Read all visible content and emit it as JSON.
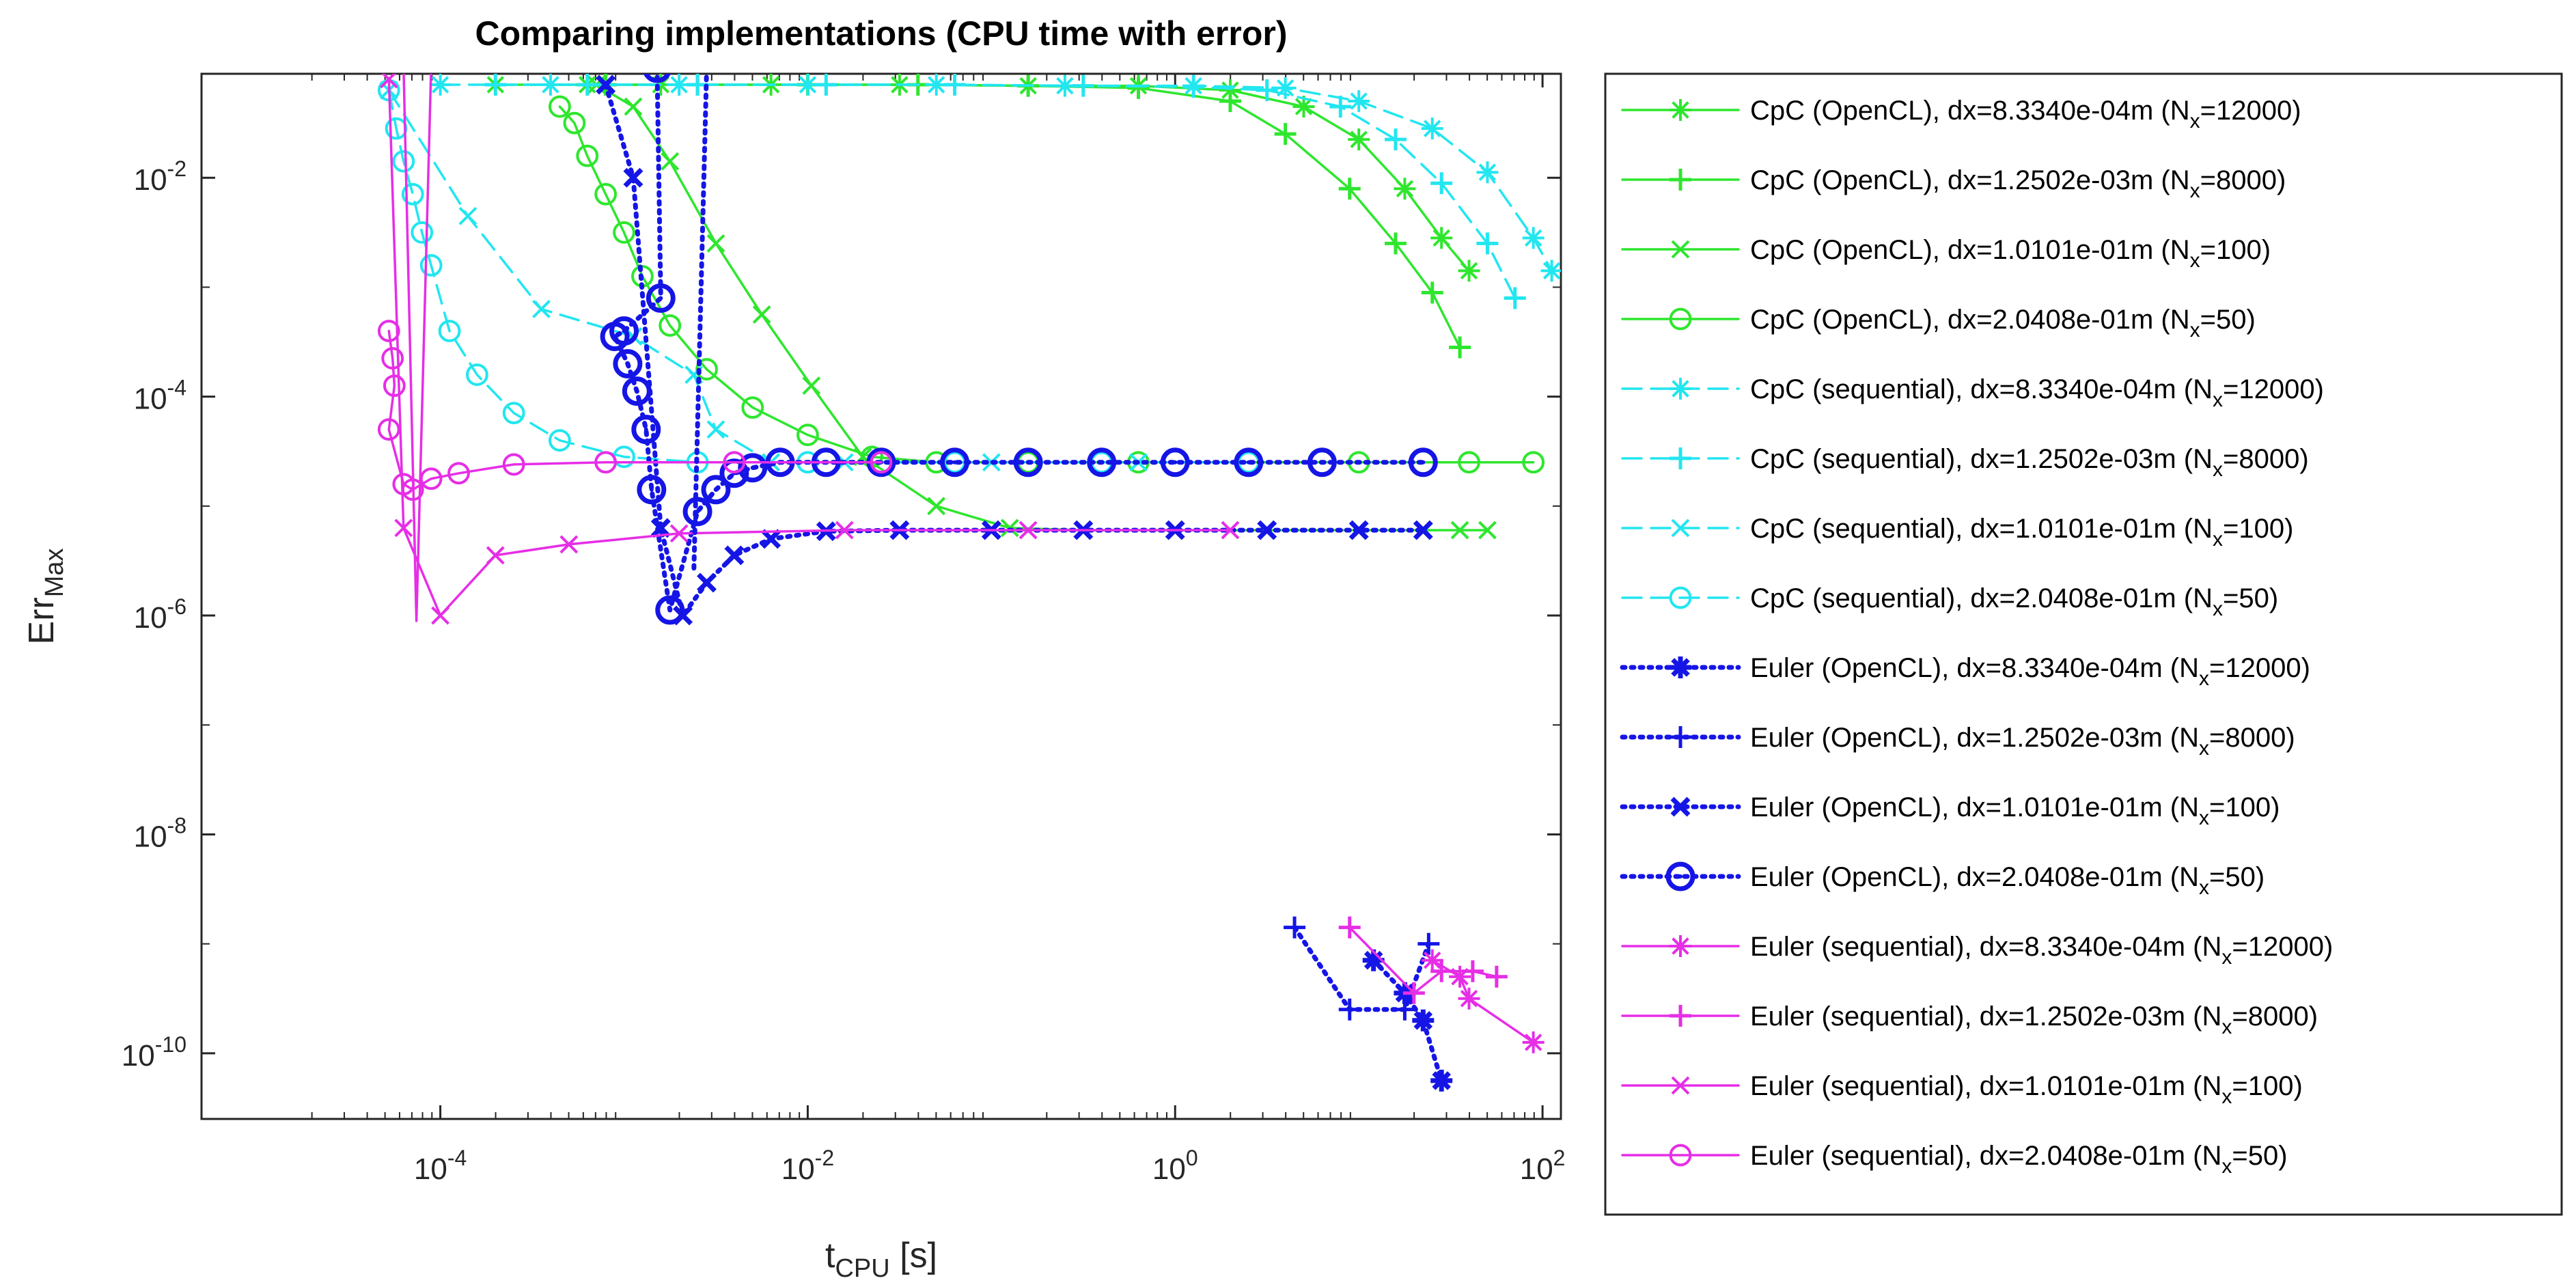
{
  "chart_data": {
    "type": "line",
    "title": "Comparing implementations (CPU time with error)",
    "xlabel": {
      "base": "t",
      "sub": "CPU",
      "rest": " [s]"
    },
    "ylabel": {
      "base": "Err",
      "sub": "Max"
    },
    "xscale": "log",
    "yscale": "log",
    "xlim_log10": [
      -5.3,
      2.1
    ],
    "ylim_log10": [
      -10.6,
      -1.05
    ],
    "x_ticks": [
      {
        "exp": -4,
        "base": "10",
        "sup": "-4"
      },
      {
        "exp": -2,
        "base": "10",
        "sup": "-2"
      },
      {
        "exp": 0,
        "base": "10",
        "sup": "0"
      },
      {
        "exp": 2,
        "base": "10",
        "sup": "2"
      }
    ],
    "y_ticks": [
      {
        "exp": -10,
        "base": "10",
        "sup": "-10"
      },
      {
        "exp": -8,
        "base": "10",
        "sup": "-8"
      },
      {
        "exp": -6,
        "base": "10",
        "sup": "-6"
      },
      {
        "exp": -4,
        "base": "10",
        "sup": "-4"
      },
      {
        "exp": -2,
        "base": "10",
        "sup": "-2"
      }
    ],
    "grid": false,
    "legend_position": "outside-right",
    "series": [
      {
        "label": "CpC (OpenCL), dx=8.3340e-04m (N",
        "sub": "x",
        "tail": "=12000)",
        "color": "#2ee62e",
        "dash": "solid",
        "marker": "asterisk",
        "points": [
          [
            -3.7,
            -1.15
          ],
          [
            -3.2,
            -1.15
          ],
          [
            -2.8,
            -1.15
          ],
          [
            -2.2,
            -1.15
          ],
          [
            -1.5,
            -1.15
          ],
          [
            -0.8,
            -1.16
          ],
          [
            -0.2,
            -1.16
          ],
          [
            0.3,
            -1.2
          ],
          [
            0.7,
            -1.35
          ],
          [
            1.0,
            -1.65
          ],
          [
            1.25,
            -2.1
          ],
          [
            1.45,
            -2.55
          ],
          [
            1.6,
            -2.85
          ]
        ]
      },
      {
        "label": "CpC (OpenCL), dx=1.2502e-03m (N",
        "sub": "x",
        "tail": "=8000)",
        "color": "#2ee62e",
        "dash": "solid",
        "marker": "plus",
        "points": [
          [
            -3.1,
            -1.15
          ],
          [
            -2.6,
            -1.15
          ],
          [
            -2.0,
            -1.15
          ],
          [
            -1.4,
            -1.15
          ],
          [
            -0.8,
            -1.16
          ],
          [
            -0.2,
            -1.18
          ],
          [
            0.3,
            -1.3
          ],
          [
            0.6,
            -1.6
          ],
          [
            0.95,
            -2.1
          ],
          [
            1.2,
            -2.6
          ],
          [
            1.4,
            -3.05
          ],
          [
            1.55,
            -3.55
          ]
        ]
      },
      {
        "label": "CpC (OpenCL), dx=1.0101e-01m (N",
        "sub": "x",
        "tail": "=100)",
        "color": "#2ee62e",
        "dash": "solid",
        "marker": "x",
        "points": [
          [
            -3.15,
            -1.15
          ],
          [
            -2.95,
            -1.35
          ],
          [
            -2.75,
            -1.85
          ],
          [
            -2.5,
            -2.6
          ],
          [
            -2.25,
            -3.25
          ],
          [
            -1.98,
            -3.9
          ],
          [
            -1.7,
            -4.55
          ],
          [
            -1.3,
            -5.0
          ],
          [
            -0.9,
            -5.2
          ],
          [
            -0.5,
            -5.22
          ],
          [
            0.0,
            -5.22
          ],
          [
            0.5,
            -5.22
          ],
          [
            1.0,
            -5.22
          ],
          [
            1.55,
            -5.22
          ],
          [
            1.7,
            -5.22
          ]
        ]
      },
      {
        "label": "CpC (OpenCL), dx=2.0408e-01m (N",
        "sub": "x",
        "tail": "=50)",
        "color": "#2ee62e",
        "dash": "solid",
        "marker": "circle",
        "points": [
          [
            -3.35,
            -1.35
          ],
          [
            -3.27,
            -1.5
          ],
          [
            -3.2,
            -1.8
          ],
          [
            -3.1,
            -2.15
          ],
          [
            -3.0,
            -2.5
          ],
          [
            -2.9,
            -2.9
          ],
          [
            -2.75,
            -3.35
          ],
          [
            -2.55,
            -3.75
          ],
          [
            -2.3,
            -4.1
          ],
          [
            -2.0,
            -4.35
          ],
          [
            -1.65,
            -4.55
          ],
          [
            -1.3,
            -4.6
          ],
          [
            -0.8,
            -4.6
          ],
          [
            -0.2,
            -4.6
          ],
          [
            0.4,
            -4.6
          ],
          [
            1.0,
            -4.6
          ],
          [
            1.6,
            -4.6
          ],
          [
            1.95,
            -4.6
          ]
        ]
      },
      {
        "label": "CpC (sequential), dx=8.3340e-04m (N",
        "sub": "x",
        "tail": "=12000)",
        "color": "#22e6f0",
        "dash": "dashed",
        "marker": "asterisk",
        "points": [
          [
            -4.0,
            -1.15
          ],
          [
            -3.4,
            -1.15
          ],
          [
            -2.7,
            -1.15
          ],
          [
            -2.0,
            -1.15
          ],
          [
            -1.3,
            -1.15
          ],
          [
            -0.6,
            -1.16
          ],
          [
            0.1,
            -1.16
          ],
          [
            0.6,
            -1.18
          ],
          [
            1.0,
            -1.3
          ],
          [
            1.4,
            -1.55
          ],
          [
            1.7,
            -1.95
          ],
          [
            1.95,
            -2.55
          ],
          [
            2.05,
            -2.85
          ]
        ]
      },
      {
        "label": "CpC (sequential), dx=1.2502e-03m (N",
        "sub": "x",
        "tail": "=8000)",
        "color": "#22e6f0",
        "dash": "dashed",
        "marker": "plus",
        "points": [
          [
            -3.7,
            -1.15
          ],
          [
            -3.2,
            -1.15
          ],
          [
            -2.6,
            -1.15
          ],
          [
            -1.9,
            -1.15
          ],
          [
            -1.2,
            -1.15
          ],
          [
            -0.5,
            -1.16
          ],
          [
            0.1,
            -1.17
          ],
          [
            0.5,
            -1.2
          ],
          [
            0.9,
            -1.35
          ],
          [
            1.2,
            -1.65
          ],
          [
            1.45,
            -2.05
          ],
          [
            1.7,
            -2.6
          ],
          [
            1.85,
            -3.1
          ]
        ]
      },
      {
        "label": "CpC (sequential), dx=1.0101e-01m (N",
        "sub": "x",
        "tail": "=100)",
        "color": "#22e6f0",
        "dash": "dashed",
        "marker": "x",
        "points": [
          [
            -4.28,
            -1.2
          ],
          [
            -3.85,
            -2.35
          ],
          [
            -3.45,
            -3.2
          ],
          [
            -2.95,
            -3.45
          ],
          [
            -2.62,
            -3.8
          ],
          [
            -2.5,
            -4.3
          ],
          [
            -2.2,
            -4.6
          ],
          [
            -1.8,
            -4.6
          ],
          [
            -1.0,
            -4.6
          ],
          [
            -0.2,
            -4.6
          ]
        ]
      },
      {
        "label": "CpC (sequential), dx=2.0408e-01m (N",
        "sub": "x",
        "tail": "=50)",
        "color": "#22e6f0",
        "dash": "dashed",
        "marker": "circle",
        "points": [
          [
            -4.28,
            -1.2
          ],
          [
            -4.24,
            -1.55
          ],
          [
            -4.2,
            -1.85
          ],
          [
            -4.15,
            -2.15
          ],
          [
            -4.1,
            -2.5
          ],
          [
            -4.05,
            -2.8
          ],
          [
            -3.95,
            -3.4
          ],
          [
            -3.8,
            -3.8
          ],
          [
            -3.6,
            -4.15
          ],
          [
            -3.35,
            -4.4
          ],
          [
            -3.0,
            -4.55
          ],
          [
            -2.6,
            -4.6
          ],
          [
            -2.0,
            -4.6
          ],
          [
            -1.2,
            -4.6
          ],
          [
            -0.4,
            -4.6
          ],
          [
            0.4,
            -4.6
          ]
        ]
      },
      {
        "label": "Euler (OpenCL), dx=8.3340e-04m (N",
        "sub": "x",
        "tail": "=12000)",
        "color": "#1515e6",
        "dash": "dotted",
        "marker": "filledstar",
        "points": [
          [
            1.08,
            -9.15
          ],
          [
            1.25,
            -9.45
          ],
          [
            1.35,
            -9.7
          ],
          [
            1.45,
            -10.25
          ]
        ]
      },
      {
        "label": "Euler (OpenCL), dx=1.2502e-03m (N",
        "sub": "x",
        "tail": "=8000)",
        "color": "#1515e6",
        "dash": "dotted",
        "marker": "plus",
        "points": [
          [
            0.65,
            -8.85
          ],
          [
            0.95,
            -9.6
          ],
          [
            1.25,
            -9.6
          ],
          [
            1.38,
            -9.0
          ]
        ]
      },
      {
        "label": "Euler (OpenCL), dx=1.0101e-01m (N",
        "sub": "x",
        "tail": "=100)",
        "color": "#1515e6",
        "dash": "dotted",
        "marker": "x",
        "points": [
          [
            -3.1,
            -1.15
          ],
          [
            -2.95,
            -2.0
          ],
          [
            -2.8,
            -5.2
          ],
          [
            -2.68,
            -6.0
          ],
          [
            -2.55,
            -5.7
          ],
          [
            -2.4,
            -5.45
          ],
          [
            -2.2,
            -5.3
          ],
          [
            -1.9,
            -5.23
          ],
          [
            -1.5,
            -5.22
          ],
          [
            -1.0,
            -5.22
          ],
          [
            -0.5,
            -5.22
          ],
          [
            0.0,
            -5.22
          ],
          [
            0.5,
            -5.22
          ],
          [
            1.0,
            -5.22
          ],
          [
            1.35,
            -5.22
          ]
        ]
      },
      {
        "label": "Euler (OpenCL), dx=2.0408e-01m (N",
        "sub": "x",
        "tail": "=50)",
        "color": "#1515e6",
        "dash": "dotted",
        "marker": "bigcircle",
        "points": [
          [
            -2.82,
            -1.0
          ],
          [
            -2.8,
            -3.1
          ],
          [
            -3.0,
            -3.4
          ],
          [
            -3.05,
            -3.45
          ],
          [
            -2.98,
            -3.7
          ],
          [
            -2.93,
            -3.95
          ],
          [
            -2.88,
            -4.3
          ],
          [
            -2.85,
            -4.85
          ],
          [
            -2.75,
            -5.95
          ],
          [
            -2.6,
            -5.05
          ],
          [
            -2.5,
            -4.85
          ],
          [
            -2.4,
            -4.7
          ],
          [
            -2.3,
            -4.65
          ],
          [
            -2.15,
            -4.6
          ],
          [
            -1.9,
            -4.6
          ],
          [
            -1.6,
            -4.6
          ],
          [
            -1.2,
            -4.6
          ],
          [
            -0.8,
            -4.6
          ],
          [
            -0.4,
            -4.6
          ],
          [
            0.0,
            -4.6
          ],
          [
            0.4,
            -4.6
          ],
          [
            0.8,
            -4.6
          ],
          [
            1.35,
            -4.6
          ]
        ]
      },
      {
        "label": "Euler (sequential), dx=8.3340e-04m (N",
        "sub": "x",
        "tail": "=12000)",
        "color": "#e62ee6",
        "dash": "solid",
        "marker": "asterisk",
        "points": [
          [
            1.4,
            -9.15
          ],
          [
            1.55,
            -9.3
          ],
          [
            1.6,
            -9.5
          ],
          [
            1.95,
            -9.9
          ]
        ]
      },
      {
        "label": "Euler (sequential), dx=1.2502e-03m (N",
        "sub": "x",
        "tail": "=8000)",
        "color": "#e62ee6",
        "dash": "solid",
        "marker": "plus",
        "points": [
          [
            0.95,
            -8.85
          ],
          [
            1.3,
            -9.45
          ],
          [
            1.45,
            -9.25
          ],
          [
            1.62,
            -9.25
          ],
          [
            1.75,
            -9.3
          ]
        ]
      },
      {
        "label": "Euler (sequential), dx=1.0101e-01m (N",
        "sub": "x",
        "tail": "=100)",
        "color": "#e62ee6",
        "dash": "solid",
        "marker": "x",
        "points": [
          [
            -4.28,
            -1.1
          ],
          [
            -4.2,
            -5.2
          ],
          [
            -4.0,
            -6.0
          ],
          [
            -3.7,
            -5.45
          ],
          [
            -3.3,
            -5.35
          ],
          [
            -2.7,
            -5.25
          ],
          [
            -1.8,
            -5.22
          ],
          [
            -0.8,
            -5.22
          ],
          [
            0.3,
            -5.22
          ]
        ]
      },
      {
        "label": "Euler (sequential), dx=2.0408e-01m (N",
        "sub": "x",
        "tail": "=50)",
        "color": "#e62ee6",
        "dash": "solid",
        "marker": "circle",
        "points": [
          [
            -4.28,
            -3.4
          ],
          [
            -4.26,
            -3.65
          ],
          [
            -4.25,
            -3.9
          ],
          [
            -4.28,
            -4.3
          ],
          [
            -4.2,
            -4.8
          ],
          [
            -4.15,
            -4.85
          ],
          [
            -4.05,
            -4.75
          ],
          [
            -3.9,
            -4.7
          ],
          [
            -3.6,
            -4.62
          ],
          [
            -3.1,
            -4.6
          ],
          [
            -2.4,
            -4.6
          ],
          [
            -1.6,
            -4.6
          ]
        ]
      },
      {
        "label": "",
        "sub": "",
        "tail": "",
        "color": "#e62ee6",
        "dash": "solid",
        "marker": "none",
        "hidden_in_legend": true,
        "points": [
          [
            -4.2,
            -1.0
          ],
          [
            -4.13,
            -6.05
          ],
          [
            -4.05,
            -1.0
          ]
        ]
      },
      {
        "label": "",
        "sub": "",
        "tail": "",
        "color": "#1515e6",
        "dash": "dotted",
        "marker": "none",
        "hidden_in_legend": true,
        "points": [
          [
            -2.55,
            -1.0
          ],
          [
            -2.62,
            -5.6
          ]
        ]
      }
    ]
  }
}
